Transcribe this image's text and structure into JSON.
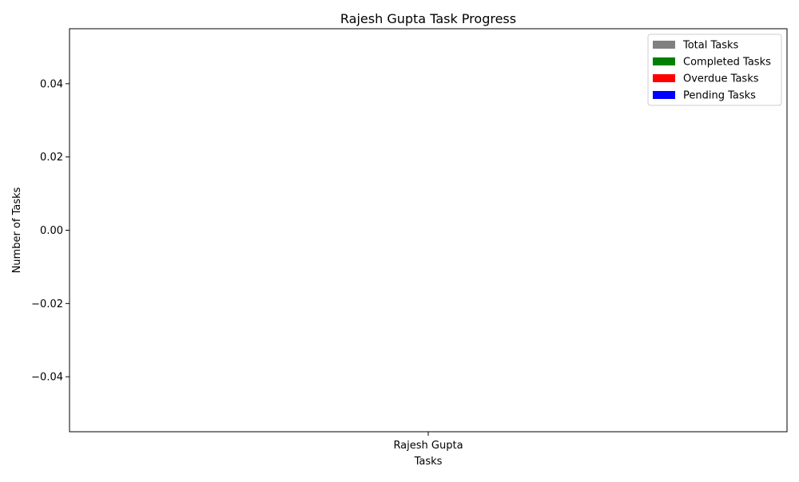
{
  "chart_data": {
    "type": "bar",
    "title": "Rajesh Gupta Task Progress",
    "xlabel": "Tasks",
    "ylabel": "Number of Tasks",
    "categories": [
      "Rajesh Gupta"
    ],
    "series": [
      {
        "name": "Total Tasks",
        "color": "#808080",
        "values": [
          0
        ]
      },
      {
        "name": "Completed Tasks",
        "color": "#008000",
        "values": [
          0
        ]
      },
      {
        "name": "Overdue Tasks",
        "color": "#ff0000",
        "values": [
          0
        ]
      },
      {
        "name": "Pending Tasks",
        "color": "#0000ff",
        "values": [
          0
        ]
      }
    ],
    "ylim": [
      -0.055,
      0.055
    ],
    "yticks": [
      -0.04,
      -0.02,
      0.0,
      0.02,
      0.04
    ],
    "ytick_labels": [
      "−0.04",
      "−0.02",
      "0.00",
      "0.02",
      "0.04"
    ],
    "grid": false,
    "legend_position": "top-right"
  }
}
